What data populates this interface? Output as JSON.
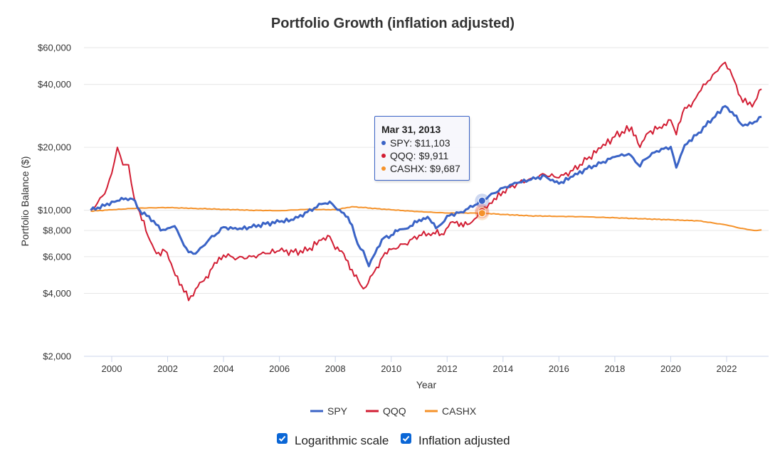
{
  "chart_data": {
    "type": "line",
    "title": "Portfolio Growth (inflation adjusted)",
    "xlabel": "Year",
    "ylabel": "Portfolio Balance ($)",
    "yscale": "log",
    "ylim": [
      2000,
      60000
    ],
    "xlim": [
      1999.0,
      2023.4
    ],
    "y_ticks": [
      2000,
      4000,
      6000,
      8000,
      10000,
      20000,
      40000,
      60000
    ],
    "y_tick_labels": [
      "$2,000",
      "$4,000",
      "$6,000",
      "$8,000",
      "$10,000",
      "$20,000",
      "$40,000",
      "$60,000"
    ],
    "x_ticks": [
      2000,
      2002,
      2004,
      2006,
      2008,
      2010,
      2012,
      2014,
      2016,
      2018,
      2020,
      2022
    ],
    "x_tick_labels": [
      "2000",
      "2002",
      "2004",
      "2006",
      "2008",
      "2010",
      "2012",
      "2014",
      "2016",
      "2018",
      "2020",
      "2022"
    ],
    "grid": true,
    "legend_position": "bottom",
    "series": [
      {
        "name": "SPY",
        "color": "#3a63c6",
        "x": [
          1999.25,
          1999.5,
          1999.75,
          2000.0,
          2000.2,
          2000.5,
          2000.75,
          2001.0,
          2001.25,
          2001.5,
          2001.75,
          2002.0,
          2002.25,
          2002.5,
          2002.75,
          2003.0,
          2003.25,
          2003.5,
          2003.75,
          2004.0,
          2004.5,
          2005.0,
          2005.5,
          2006.0,
          2006.5,
          2007.0,
          2007.5,
          2007.8,
          2008.0,
          2008.3,
          2008.6,
          2008.8,
          2009.0,
          2009.2,
          2009.5,
          2009.75,
          2010.0,
          2010.3,
          2010.6,
          2011.0,
          2011.3,
          2011.6,
          2011.8,
          2012.0,
          2012.5,
          2013.0,
          2013.25,
          2013.5,
          2014.0,
          2014.5,
          2015.0,
          2015.5,
          2015.7,
          2016.0,
          2016.5,
          2017.0,
          2017.5,
          2018.0,
          2018.5,
          2018.9,
          2019.0,
          2019.5,
          2020.0,
          2020.2,
          2020.5,
          2021.0,
          2021.5,
          2021.95,
          2022.2,
          2022.5,
          2022.75,
          2023.0,
          2023.25
        ],
        "values": [
          10000,
          10300,
          10500,
          11000,
          11100,
          11400,
          11300,
          10000,
          9400,
          8900,
          8000,
          8200,
          8400,
          7200,
          6300,
          6200,
          6700,
          7300,
          7700,
          8300,
          8100,
          8300,
          8600,
          8800,
          9000,
          9800,
          10700,
          11000,
          10300,
          9700,
          8500,
          6900,
          6400,
          5400,
          6600,
          7400,
          7600,
          8100,
          8200,
          9000,
          9300,
          8200,
          8600,
          9400,
          9800,
          10600,
          11103,
          11700,
          12800,
          13500,
          14000,
          14600,
          13900,
          13400,
          14500,
          15800,
          16800,
          18000,
          18600,
          16200,
          17300,
          19200,
          20100,
          16000,
          20500,
          23500,
          27500,
          31500,
          29500,
          26000,
          25500,
          26500,
          28000
        ]
      },
      {
        "name": "QQQ",
        "color": "#d21d33",
        "x": [
          1999.25,
          1999.5,
          1999.75,
          2000.0,
          2000.2,
          2000.4,
          2000.6,
          2000.8,
          2001.0,
          2001.3,
          2001.6,
          2001.9,
          2002.2,
          2002.5,
          2002.75,
          2003.0,
          2003.3,
          2003.6,
          2004.0,
          2004.5,
          2005.0,
          2005.5,
          2006.0,
          2006.5,
          2007.0,
          2007.5,
          2007.8,
          2008.0,
          2008.3,
          2008.6,
          2008.9,
          2009.1,
          2009.4,
          2009.7,
          2010.0,
          2010.5,
          2011.0,
          2011.5,
          2011.8,
          2012.2,
          2012.5,
          2012.8,
          2013.25,
          2013.6,
          2014.0,
          2014.5,
          2015.0,
          2015.5,
          2016.0,
          2016.5,
          2017.0,
          2017.5,
          2018.0,
          2018.6,
          2018.9,
          2019.2,
          2019.6,
          2020.0,
          2020.2,
          2020.5,
          2020.8,
          2021.0,
          2021.5,
          2021.95,
          2022.2,
          2022.5,
          2022.75,
          2023.0,
          2023.25
        ],
        "values": [
          10000,
          10900,
          12000,
          15000,
          20000,
          16500,
          16500,
          11500,
          9800,
          7500,
          6200,
          6400,
          5200,
          4400,
          3700,
          4200,
          4600,
          5300,
          6100,
          5900,
          6000,
          6200,
          6400,
          6300,
          6400,
          7200,
          7500,
          6500,
          6200,
          5200,
          4400,
          4300,
          5100,
          6000,
          6500,
          6900,
          7600,
          7800,
          7700,
          8800,
          8700,
          8600,
          9911,
          10800,
          12300,
          13400,
          14200,
          14800,
          14300,
          15500,
          17500,
          19800,
          22500,
          25000,
          20000,
          23500,
          25000,
          27000,
          23000,
          31000,
          33000,
          36500,
          44500,
          51000,
          44000,
          35000,
          32000,
          33000,
          38000
        ]
      },
      {
        "name": "CASHX",
        "color": "#f5922a",
        "x": [
          1999.25,
          2000.0,
          2001.0,
          2002.0,
          2003.0,
          2004.0,
          2005.0,
          2006.0,
          2007.0,
          2008.0,
          2008.6,
          2009.0,
          2010.0,
          2011.0,
          2012.0,
          2013.0,
          2013.25,
          2014.0,
          2015.0,
          2016.0,
          2017.0,
          2018.0,
          2019.0,
          2020.0,
          2021.0,
          2021.5,
          2022.0,
          2022.5,
          2023.0,
          2023.25
        ],
        "values": [
          9900,
          10050,
          10250,
          10300,
          10200,
          10100,
          10000,
          9950,
          10100,
          10050,
          10400,
          10300,
          10050,
          9850,
          9700,
          9700,
          9687,
          9550,
          9400,
          9350,
          9300,
          9200,
          9100,
          9000,
          8900,
          8700,
          8500,
          8200,
          8000,
          8050
        ]
      }
    ],
    "tooltip": {
      "date": "Mar 31, 2013",
      "x": 2013.25,
      "entries": [
        {
          "label": "SPY: $11,103",
          "color": "#3a63c6",
          "value": 11103
        },
        {
          "label": "QQQ: $9,911",
          "color": "#d21d33",
          "value": 9911
        },
        {
          "label": "CASHX: $9,687",
          "color": "#f5922a",
          "value": 9687
        }
      ]
    }
  },
  "controls": {
    "log_scale": {
      "label": "Logarithmic scale",
      "checked": true
    },
    "inflation": {
      "label": "Inflation adjusted",
      "checked": true
    }
  }
}
